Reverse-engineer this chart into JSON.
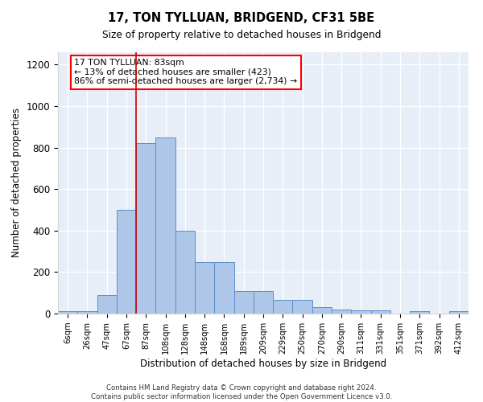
{
  "title": "17, TON TYLLUAN, BRIDGEND, CF31 5BE",
  "subtitle": "Size of property relative to detached houses in Bridgend",
  "xlabel": "Distribution of detached houses by size in Bridgend",
  "ylabel": "Number of detached properties",
  "bar_color": "#aec6e8",
  "bar_edge_color": "#5b8fc9",
  "bg_color": "#e8eef8",
  "categories": [
    "6sqm",
    "26sqm",
    "47sqm",
    "67sqm",
    "87sqm",
    "108sqm",
    "128sqm",
    "148sqm",
    "168sqm",
    "189sqm",
    "209sqm",
    "229sqm",
    "250sqm",
    "270sqm",
    "290sqm",
    "311sqm",
    "331sqm",
    "351sqm",
    "371sqm",
    "392sqm",
    "412sqm"
  ],
  "values": [
    10,
    10,
    90,
    500,
    820,
    850,
    400,
    250,
    250,
    110,
    110,
    65,
    65,
    30,
    20,
    15,
    15,
    0,
    10,
    0,
    10
  ],
  "annotation_text": "17 TON TYLLUAN: 83sqm\n← 13% of detached houses are smaller (423)\n86% of semi-detached houses are larger (2,734) →",
  "vline_x_index": 4,
  "vline_color": "#cc0000",
  "footnote": "Contains HM Land Registry data © Crown copyright and database right 2024.\nContains public sector information licensed under the Open Government Licence v3.0.",
  "ylim": [
    0,
    1260
  ],
  "yticks": [
    0,
    200,
    400,
    600,
    800,
    1000,
    1200
  ]
}
